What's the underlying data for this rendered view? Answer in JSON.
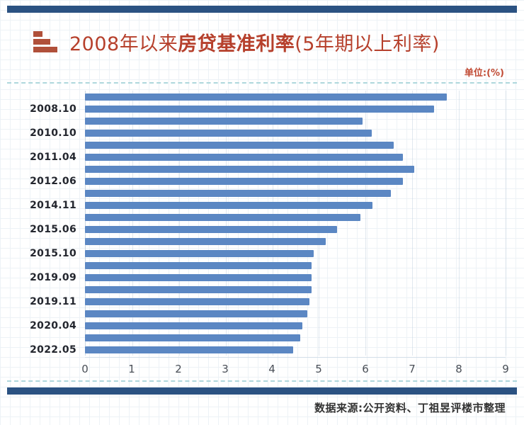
{
  "page": {
    "unit_label": "单位:(%)",
    "source_label": "数据来源:",
    "source_text": "公开资料、丁祖昱评楼市整理"
  },
  "header": {
    "title_prefix": "2008年以来",
    "title_main": "房贷基准利率",
    "title_suffix": "(5年期以上利率)"
  },
  "colors": {
    "accent_red": "#b6402c",
    "navy_rule": "#2b5282",
    "bar_blue": "#5b87c3",
    "divider_teal": "#aed7dc"
  },
  "chart_data": {
    "type": "bar",
    "orientation": "horizontal",
    "title": "2008年以来房贷基准利率(5年期以上利率)",
    "unit": "%",
    "xlabel": "",
    "ylabel": "",
    "xlim": [
      0,
      9
    ],
    "x_ticks": [
      0,
      1,
      2,
      3,
      4,
      5,
      6,
      7,
      8,
      9
    ],
    "grid": true,
    "legend_position": "none",
    "bar_color": "#5b87c3",
    "rows": [
      {
        "label": "",
        "value": 7.74
      },
      {
        "label": "2008.10",
        "value": 7.47
      },
      {
        "label": "",
        "value": 5.94
      },
      {
        "label": "2010.10",
        "value": 6.14
      },
      {
        "label": "",
        "value": 6.6
      },
      {
        "label": "2011.04",
        "value": 6.8
      },
      {
        "label": "",
        "value": 7.05
      },
      {
        "label": "2012.06",
        "value": 6.8
      },
      {
        "label": "",
        "value": 6.55
      },
      {
        "label": "2014.11",
        "value": 6.15
      },
      {
        "label": "",
        "value": 5.9
      },
      {
        "label": "2015.06",
        "value": 5.4
      },
      {
        "label": "",
        "value": 5.15
      },
      {
        "label": "2015.10",
        "value": 4.9
      },
      {
        "label": "",
        "value": 4.85
      },
      {
        "label": "2019.09",
        "value": 4.85
      },
      {
        "label": "",
        "value": 4.85
      },
      {
        "label": "2019.11",
        "value": 4.8
      },
      {
        "label": "",
        "value": 4.75
      },
      {
        "label": "2020.04",
        "value": 4.65
      },
      {
        "label": "",
        "value": 4.6
      },
      {
        "label": "2022.05",
        "value": 4.45
      }
    ],
    "source": "数据来源:公开资料、丁祖昱评楼市整理"
  }
}
